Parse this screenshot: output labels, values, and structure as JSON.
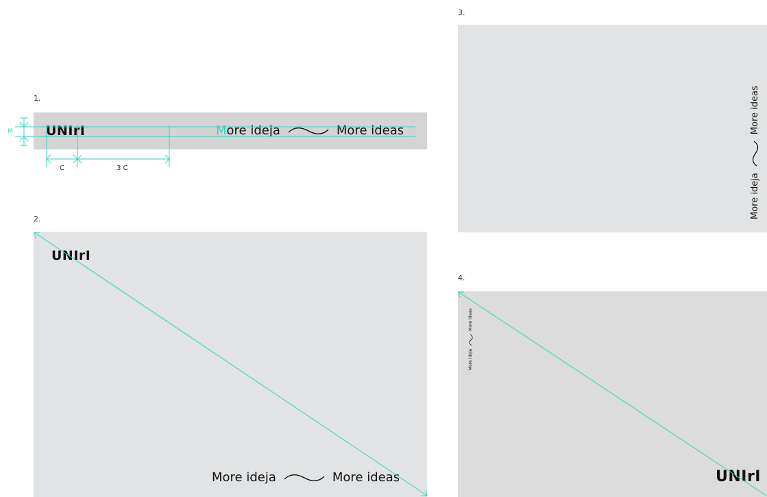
{
  "sections": [
    {
      "number": "1.",
      "logo": "UNIrI",
      "tagline_lead": "M",
      "tagline_left_rest": "ore ideja",
      "tagline_right": "More ideas"
    },
    {
      "number": "2.",
      "logo": "UNIrI",
      "tagline_left": "More ideja",
      "tagline_right": "More ideas"
    },
    {
      "number": "3.",
      "tagline_left": "More ideja",
      "tagline_right": "More ideas"
    },
    {
      "number": "4.",
      "logo": "UNIrI",
      "tagline_left": "More ideja",
      "tagline_right": "More ideas"
    }
  ],
  "dimensions": {
    "m_label": "M",
    "c_label": "C",
    "three_c_label": "3 C"
  },
  "colors": {
    "accent": "#2fd6bf",
    "panel_dark": "#d4d4d4",
    "panel_light": "#e2e3e4"
  }
}
